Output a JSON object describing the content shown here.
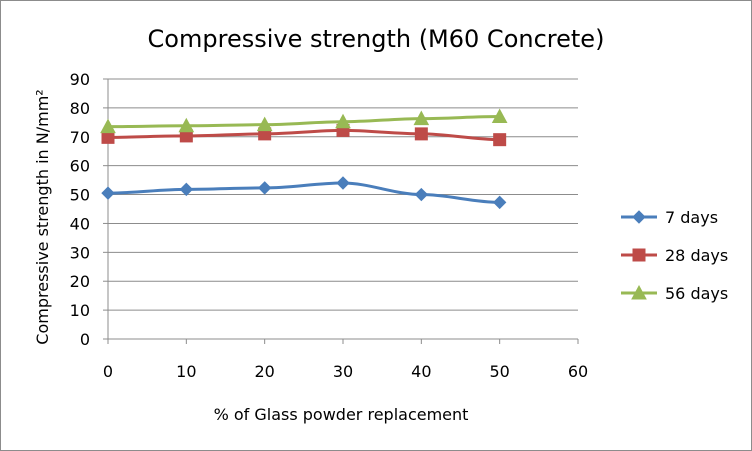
{
  "chart_data": {
    "type": "line",
    "title": "Compressive strength (M60 Concrete)",
    "xlabel": "% of Glass powder replacement",
    "ylabel": "Compressive strength in N/mm²",
    "x": [
      0,
      10,
      20,
      30,
      40,
      50
    ],
    "xlim": [
      0,
      60
    ],
    "xticks": [
      0,
      10,
      20,
      30,
      40,
      50,
      60
    ],
    "ylim": [
      0,
      90
    ],
    "yticks": [
      0,
      10,
      20,
      30,
      40,
      50,
      60,
      70,
      80,
      90
    ],
    "grid": true,
    "legend_position": "right",
    "series": [
      {
        "name": "7 days",
        "color": "#4a7ebb",
        "marker": "diamond",
        "values": [
          50.5,
          51.8,
          52.3,
          54.0,
          50.0,
          47.3
        ]
      },
      {
        "name": "28 days",
        "color": "#be4b48",
        "marker": "square",
        "values": [
          69.8,
          70.3,
          71.0,
          72.2,
          71.0,
          69.0
        ]
      },
      {
        "name": "56 days",
        "color": "#98b954",
        "marker": "triangle",
        "values": [
          73.5,
          73.8,
          74.2,
          75.2,
          76.3,
          77.0
        ]
      }
    ]
  }
}
